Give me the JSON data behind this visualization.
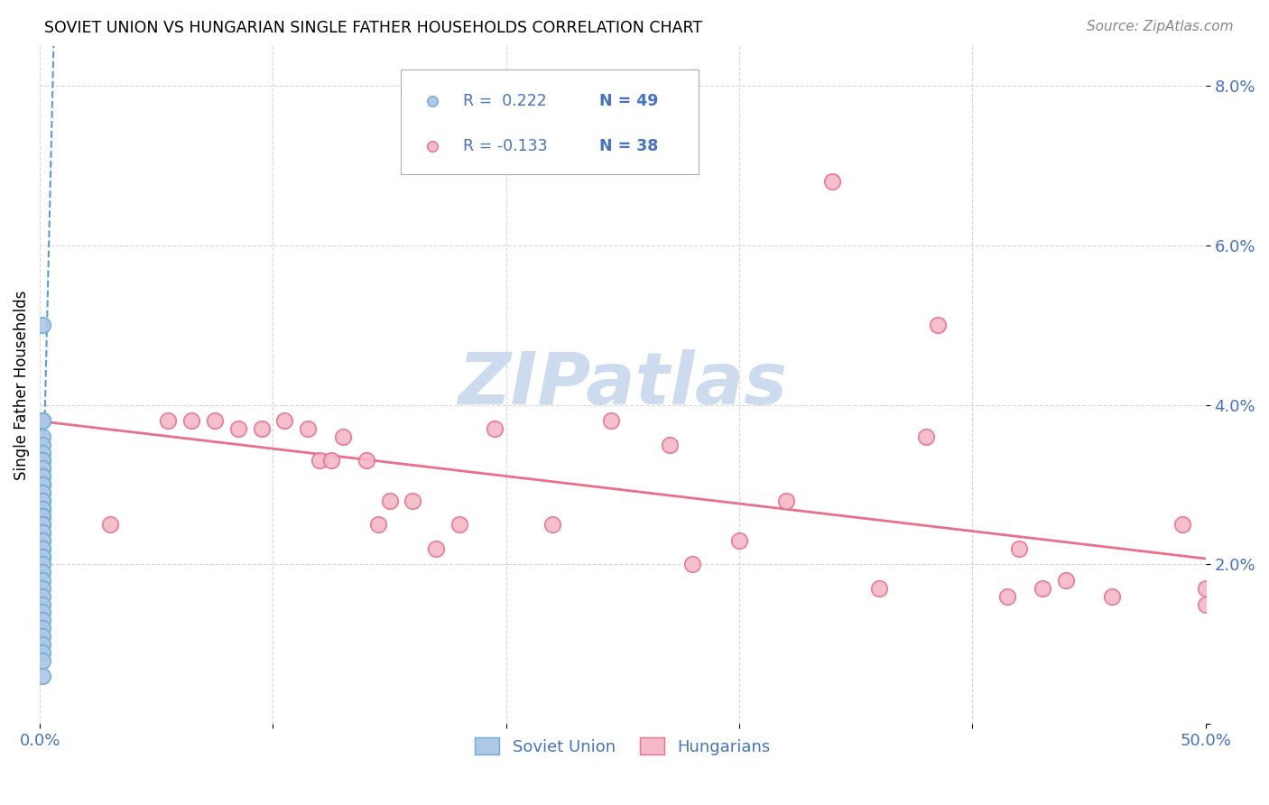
{
  "title": "SOVIET UNION VS HUNGARIAN SINGLE FATHER HOUSEHOLDS CORRELATION CHART",
  "source": "Source: ZipAtlas.com",
  "ylabel": "Single Father Households",
  "y_ticks": [
    0.0,
    0.02,
    0.04,
    0.06,
    0.08
  ],
  "y_tick_labels": [
    "",
    "2.0%",
    "4.0%",
    "6.0%",
    "8.0%"
  ],
  "x_ticks": [
    0.0,
    0.1,
    0.2,
    0.3,
    0.4,
    0.5
  ],
  "x_tick_labels": [
    "0.0%",
    "",
    "",
    "",
    "",
    "50.0%"
  ],
  "x_min": 0.0,
  "x_max": 0.5,
  "y_min": 0.0,
  "y_max": 0.085,
  "soviet_R": 0.222,
  "soviet_N": 49,
  "hungarian_R": -0.133,
  "hungarian_N": 38,
  "soviet_color": "#aec6e8",
  "soviet_edge_color": "#6aaed6",
  "hungarian_color": "#f4b8c8",
  "hungarian_edge_color": "#e8708a",
  "trendline_soviet_color": "#5b9bd5",
  "trendline_hungarian_color": "#e8708a",
  "watermark_text": "ZIPatlas",
  "watermark_color": "#ccdcee",
  "soviet_points_x": [
    0.001,
    0.001,
    0.001,
    0.001,
    0.001,
    0.001,
    0.001,
    0.001,
    0.001,
    0.001,
    0.001,
    0.001,
    0.001,
    0.001,
    0.001,
    0.001,
    0.001,
    0.001,
    0.001,
    0.001,
    0.001,
    0.001,
    0.001,
    0.001,
    0.001,
    0.001,
    0.001,
    0.001,
    0.001,
    0.001,
    0.001,
    0.001,
    0.001,
    0.001,
    0.001,
    0.001,
    0.001,
    0.001,
    0.001,
    0.001,
    0.001,
    0.001,
    0.001,
    0.001,
    0.001,
    0.001,
    0.001,
    0.001,
    0.001
  ],
  "soviet_points_y": [
    0.05,
    0.038,
    0.038,
    0.036,
    0.035,
    0.034,
    0.033,
    0.033,
    0.032,
    0.032,
    0.031,
    0.031,
    0.03,
    0.03,
    0.03,
    0.029,
    0.029,
    0.028,
    0.028,
    0.028,
    0.027,
    0.027,
    0.026,
    0.026,
    0.025,
    0.025,
    0.025,
    0.024,
    0.024,
    0.023,
    0.023,
    0.022,
    0.022,
    0.021,
    0.021,
    0.02,
    0.019,
    0.018,
    0.017,
    0.016,
    0.015,
    0.014,
    0.013,
    0.012,
    0.011,
    0.01,
    0.009,
    0.008,
    0.006
  ],
  "hungarian_points_x": [
    0.03,
    0.055,
    0.065,
    0.075,
    0.085,
    0.095,
    0.105,
    0.115,
    0.12,
    0.125,
    0.13,
    0.14,
    0.145,
    0.15,
    0.16,
    0.17,
    0.18,
    0.195,
    0.22,
    0.245,
    0.27,
    0.3,
    0.32,
    0.28,
    0.38,
    0.42,
    0.44,
    0.34,
    0.49,
    0.36,
    0.43,
    0.46,
    0.5,
    0.415,
    0.505,
    0.385,
    0.5,
    0.505
  ],
  "hungarian_points_y": [
    0.025,
    0.038,
    0.038,
    0.038,
    0.037,
    0.037,
    0.038,
    0.037,
    0.033,
    0.033,
    0.036,
    0.033,
    0.025,
    0.028,
    0.028,
    0.022,
    0.025,
    0.037,
    0.025,
    0.038,
    0.035,
    0.023,
    0.028,
    0.02,
    0.036,
    0.022,
    0.018,
    0.068,
    0.025,
    0.017,
    0.017,
    0.016,
    0.015,
    0.016,
    0.012,
    0.05,
    0.017,
    0.015
  ],
  "legend_R1": "R =  0.222",
  "legend_N1": "N = 49",
  "legend_R2": "R = -0.133",
  "legend_N2": "N = 38",
  "legend_label1": "Soviet Union",
  "legend_label2": "Hungarians"
}
